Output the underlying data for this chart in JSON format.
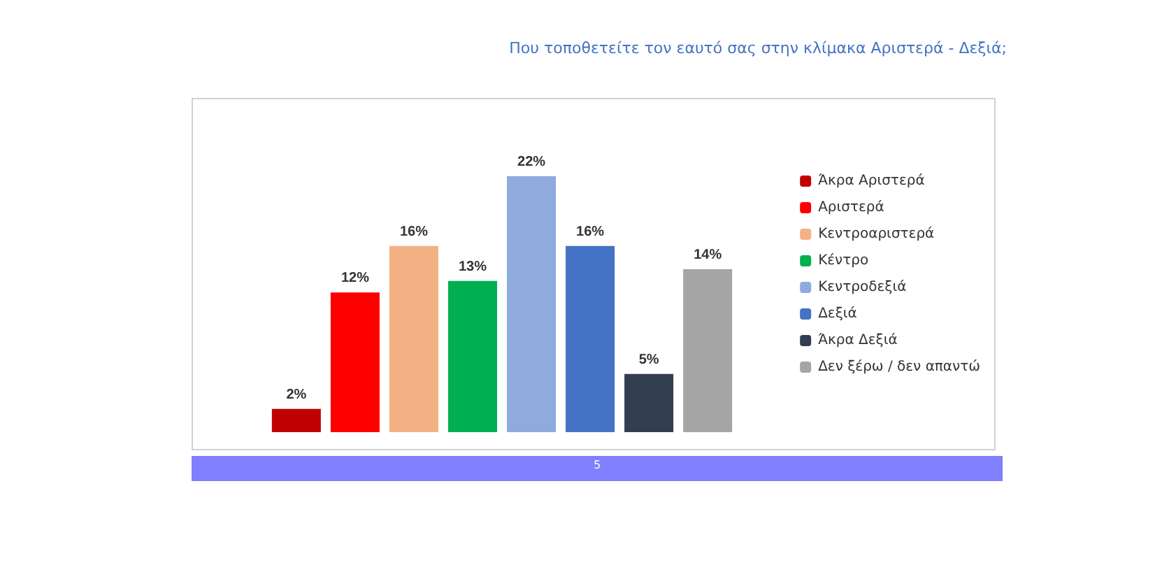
{
  "chart_data": {
    "type": "bar",
    "title": "Που τοποθετείτε τον εαυτό σας στην κλίμακα Αριστερά - Δεξιά;",
    "categories": [
      null
    ],
    "series": [
      {
        "name": "Άκρα Αριστερά",
        "color": "#c00000",
        "values": [
          2
        ],
        "value_labels": [
          "2%"
        ]
      },
      {
        "name": "Αριστερά",
        "color": "#ff0000",
        "values": [
          12
        ],
        "value_labels": [
          "12%"
        ]
      },
      {
        "name": "Κεντροαριστερά",
        "color": "#f4b183",
        "values": [
          16
        ],
        "value_labels": [
          "16%"
        ]
      },
      {
        "name": "Κέντρο",
        "color": "#00b050",
        "values": [
          13
        ],
        "value_labels": [
          "13%"
        ]
      },
      {
        "name": "Κεντροδεξιά",
        "color": "#8faadc",
        "values": [
          22
        ],
        "value_labels": [
          "22%"
        ]
      },
      {
        "name": "Δεξιά",
        "color": "#4472c4",
        "values": [
          16
        ],
        "value_labels": [
          "16%"
        ]
      },
      {
        "name": "Άκρα Δεξιά",
        "color": "#333f50",
        "values": [
          5
        ],
        "value_labels": [
          "5%"
        ]
      },
      {
        "name": "Δεν ξέρω / δεν απαντώ",
        "color": "#a5a5a5",
        "values": [
          14
        ],
        "value_labels": [
          "14%"
        ]
      }
    ],
    "legend": "right",
    "annotations": [
      "5"
    ]
  }
}
